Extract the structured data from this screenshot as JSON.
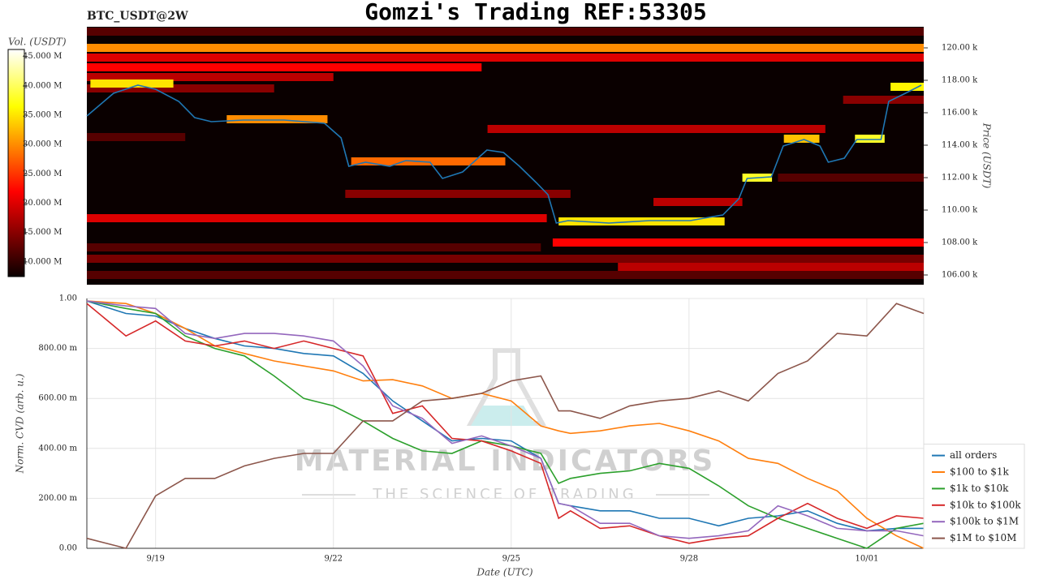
{
  "chart_data": [
    {
      "type": "heatmap",
      "title": "Gomzi's Trading REF:53305",
      "subtitle": "BTC_USDT@2W",
      "colorbar_label": "Vol. (USDT)",
      "ylabel": "Price (USDT)",
      "xlim": [
        17.84,
        31.96
      ],
      "ylim": [
        105.4,
        121.3
      ],
      "yticks": [
        {
          "value": 106,
          "label": "106.00 k"
        },
        {
          "value": 108,
          "label": "108.00 k"
        },
        {
          "value": 110,
          "label": "110.00 k"
        },
        {
          "value": 112,
          "label": "112.00 k"
        },
        {
          "value": 114,
          "label": "114.00 k"
        },
        {
          "value": 116,
          "label": "116.00 k"
        },
        {
          "value": 118,
          "label": "118.00 k"
        },
        {
          "value": 120,
          "label": "120.00 k"
        }
      ],
      "clim": [
        7.5,
        46.2
      ],
      "cticks": [
        {
          "value": 10,
          "label": "10.000 M"
        },
        {
          "value": 15,
          "label": "15.000 M"
        },
        {
          "value": 20,
          "label": "20.000 M"
        },
        {
          "value": 25,
          "label": "25.000 M"
        },
        {
          "value": 30,
          "label": "30.000 M"
        },
        {
          "value": 35,
          "label": "35.000 M"
        },
        {
          "value": 40,
          "label": "40.000 M"
        },
        {
          "value": 45,
          "label": "45.000 M"
        }
      ],
      "levels": [
        {
          "price": 121,
          "from": 17.84,
          "to": 31.96,
          "volume": 12
        },
        {
          "price": 120,
          "from": 17.84,
          "to": 31.96,
          "volume": 30
        },
        {
          "price": 119.4,
          "from": 17.84,
          "to": 31.96,
          "volume": 20
        },
        {
          "price": 118.8,
          "from": 17.84,
          "to": 24.5,
          "volume": 22
        },
        {
          "price": 118.2,
          "from": 17.84,
          "to": 22,
          "volume": 18
        },
        {
          "price": 117.5,
          "from": 17.84,
          "to": 21,
          "volume": 15
        },
        {
          "price": 116.8,
          "from": 30.6,
          "to": 31.96,
          "volume": 15
        },
        {
          "price": 115,
          "from": 24.6,
          "to": 30.3,
          "volume": 18
        },
        {
          "price": 114.5,
          "from": 17.84,
          "to": 19.5,
          "volume": 12
        },
        {
          "price": 112,
          "from": 29.5,
          "to": 31.96,
          "volume": 12
        },
        {
          "price": 111,
          "from": 22.2,
          "to": 26,
          "volume": 15
        },
        {
          "price": 110.5,
          "from": 27.4,
          "to": 28.9,
          "volume": 18
        },
        {
          "price": 109.5,
          "from": 17.84,
          "to": 25.6,
          "volume": 20
        },
        {
          "price": 108,
          "from": 25.7,
          "to": 31.96,
          "volume": 22
        },
        {
          "price": 107.7,
          "from": 17.84,
          "to": 25.5,
          "volume": 12
        },
        {
          "price": 107,
          "from": 17.84,
          "to": 31.96,
          "volume": 14
        },
        {
          "price": 106.5,
          "from": 26.8,
          "to": 31.96,
          "volume": 18
        },
        {
          "price": 106,
          "from": 17.84,
          "to": 31.96,
          "volume": 12
        },
        {
          "price": 117.8,
          "from": 17.9,
          "to": 19.3,
          "volume": 35
        },
        {
          "price": 115.6,
          "from": 20.2,
          "to": 21.9,
          "volume": 30
        },
        {
          "price": 113,
          "from": 22.3,
          "to": 24.9,
          "volume": 28
        },
        {
          "price": 109.3,
          "from": 25.8,
          "to": 28.6,
          "volume": 35
        },
        {
          "price": 112,
          "from": 28.9,
          "to": 29.4,
          "volume": 38
        },
        {
          "price": 114.4,
          "from": 29.6,
          "to": 30.2,
          "volume": 33
        },
        {
          "price": 114.4,
          "from": 30.8,
          "to": 31.3,
          "volume": 38
        },
        {
          "price": 117.6,
          "from": 31.4,
          "to": 31.96,
          "volume": 36
        }
      ],
      "price": {
        "color": "#1f77b4",
        "x": [
          17.84,
          18.29,
          18.7,
          19.0,
          19.39,
          19.66,
          19.94,
          20.48,
          21.17,
          21.85,
          22.13,
          22.26,
          22.54,
          22.95,
          23.22,
          23.63,
          23.84,
          24.18,
          24.59,
          24.87,
          25.14,
          25.42,
          25.62,
          25.76,
          25.96,
          26.65,
          27.33,
          28.02,
          28.57,
          28.84,
          28.98,
          29.39,
          29.59,
          29.94,
          30.21,
          30.35,
          30.62,
          30.83,
          31.24,
          31.37,
          31.65,
          31.92
        ],
        "values": [
          115.8,
          117.2,
          117.7,
          117.45,
          116.7,
          115.7,
          115.45,
          115.55,
          115.55,
          115.35,
          114.45,
          112.7,
          112.95,
          112.7,
          113.05,
          112.95,
          111.95,
          112.35,
          113.7,
          113.55,
          112.7,
          111.7,
          110.95,
          109.2,
          109.35,
          109.2,
          109.35,
          109.35,
          109.7,
          110.7,
          111.95,
          112.05,
          113.95,
          114.35,
          113.95,
          112.95,
          113.2,
          114.35,
          114.35,
          116.7,
          117.2,
          117.7
        ]
      }
    },
    {
      "type": "line",
      "xlabel": "Date (UTC)",
      "ylabel": "Norm. CVD (arb. u.)",
      "grid": true,
      "legend": "lower right",
      "watermark": [
        "MATERIAL INDICATORS",
        "THE SCIENCE OF TRADING"
      ],
      "xlim": [
        17.84,
        31.96
      ],
      "xticks": [
        {
          "value": 19,
          "label": "9/19"
        },
        {
          "value": 22,
          "label": "9/22"
        },
        {
          "value": 25,
          "label": "9/25"
        },
        {
          "value": 28,
          "label": "9/28"
        },
        {
          "value": 31,
          "label": "10/01"
        }
      ],
      "ylim": [
        0,
        1
      ],
      "yticks": [
        {
          "value": 0,
          "label": "0.00"
        },
        {
          "value": 0.2,
          "label": "200.00 m"
        },
        {
          "value": 0.4,
          "label": "400.00 m"
        },
        {
          "value": 0.6,
          "label": "600.00 m"
        },
        {
          "value": 0.8,
          "label": "800.00 m"
        },
        {
          "value": 1,
          "label": "1.00"
        }
      ],
      "x": [
        17.84,
        18.5,
        19.0,
        19.5,
        20.0,
        20.5,
        21.0,
        21.5,
        22.0,
        22.5,
        23.0,
        23.5,
        24.0,
        24.5,
        25.0,
        25.5,
        25.8,
        26.0,
        26.5,
        27.0,
        27.5,
        28.0,
        28.5,
        29.0,
        29.5,
        30.0,
        30.5,
        31.0,
        31.5,
        31.96
      ],
      "series": [
        {
          "name": "all orders",
          "color": "#1f77b4",
          "values": [
            0.99,
            0.94,
            0.93,
            0.88,
            0.84,
            0.81,
            0.8,
            0.78,
            0.77,
            0.7,
            0.59,
            0.51,
            0.43,
            0.44,
            0.43,
            0.36,
            0.18,
            0.17,
            0.15,
            0.15,
            0.12,
            0.12,
            0.09,
            0.12,
            0.13,
            0.15,
            0.1,
            0.07,
            0.08,
            0.08
          ]
        },
        {
          "name": "$100 to $1k",
          "color": "#ff7f0e",
          "values": [
            0.99,
            0.98,
            0.94,
            0.88,
            0.81,
            0.78,
            0.75,
            0.73,
            0.71,
            0.67,
            0.675,
            0.65,
            0.6,
            0.62,
            0.59,
            0.49,
            0.47,
            0.46,
            0.47,
            0.49,
            0.5,
            0.47,
            0.43,
            0.36,
            0.34,
            0.28,
            0.23,
            0.12,
            0.05,
            0
          ]
        },
        {
          "name": "$1k to $10k",
          "color": "#2ca02c",
          "values": [
            0.99,
            0.96,
            0.94,
            0.85,
            0.8,
            0.77,
            0.69,
            0.6,
            0.57,
            0.51,
            0.44,
            0.39,
            0.38,
            0.43,
            0.41,
            0.38,
            0.26,
            0.28,
            0.3,
            0.31,
            0.34,
            0.32,
            0.25,
            0.17,
            0.12,
            0.08,
            0.04,
            0,
            0.08,
            0.1
          ]
        },
        {
          "name": "$10k to $100k",
          "color": "#d62728",
          "values": [
            0.98,
            0.85,
            0.91,
            0.83,
            0.81,
            0.83,
            0.8,
            0.83,
            0.8,
            0.77,
            0.54,
            0.57,
            0.44,
            0.43,
            0.39,
            0.34,
            0.12,
            0.15,
            0.08,
            0.09,
            0.05,
            0.02,
            0.04,
            0.05,
            0.12,
            0.18,
            0.12,
            0.08,
            0.13,
            0.12
          ]
        },
        {
          "name": "$100k to $1M",
          "color": "#9467bd",
          "values": [
            0.99,
            0.97,
            0.96,
            0.86,
            0.84,
            0.86,
            0.86,
            0.85,
            0.83,
            0.73,
            0.57,
            0.52,
            0.42,
            0.45,
            0.41,
            0.36,
            0.18,
            0.17,
            0.1,
            0.1,
            0.05,
            0.04,
            0.05,
            0.07,
            0.17,
            0.13,
            0.08,
            0.07,
            0.07,
            0.05
          ]
        },
        {
          "name": "$1M to $10M",
          "color": "#8c564b",
          "values": [
            0.04,
            0,
            0.21,
            0.28,
            0.28,
            0.33,
            0.36,
            0.38,
            0.38,
            0.51,
            0.51,
            0.59,
            0.6,
            0.62,
            0.67,
            0.69,
            0.55,
            0.55,
            0.52,
            0.57,
            0.59,
            0.6,
            0.63,
            0.59,
            0.7,
            0.75,
            0.86,
            0.85,
            0.98,
            0.94
          ]
        }
      ]
    }
  ]
}
